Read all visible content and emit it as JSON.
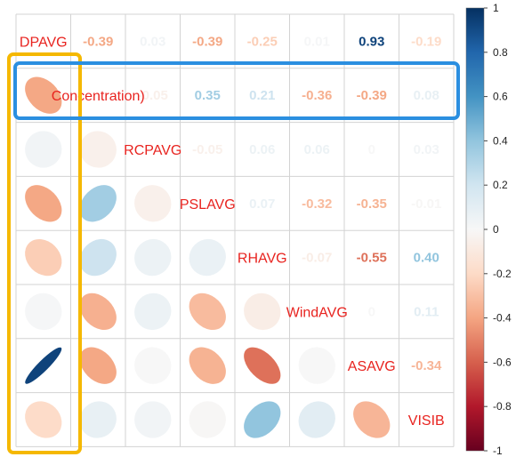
{
  "chart_data": {
    "type": "heatmap",
    "variables": [
      "DPAVG",
      "(Concentration)",
      "RCPAVG",
      "PSLAVG",
      "RHAVG",
      "WindAVG",
      "ASAVG",
      "VISIB"
    ],
    "variable_labels": [
      "DPAVG",
      "Concentration)",
      "RCPAVG",
      "PSLAVG",
      "RHAVG",
      "WindAVG",
      "ASAVG",
      "VISIB"
    ],
    "matrix": [
      [
        1.0,
        -0.39,
        0.03,
        -0.39,
        -0.25,
        0.01,
        0.93,
        -0.19
      ],
      [
        -0.39,
        1.0,
        -0.05,
        0.35,
        0.21,
        -0.36,
        -0.39,
        0.08
      ],
      [
        0.03,
        -0.05,
        1.0,
        -0.05,
        0.06,
        0.06,
        0.0,
        0.03
      ],
      [
        -0.39,
        0.35,
        -0.05,
        1.0,
        0.07,
        -0.32,
        -0.35,
        -0.01
      ],
      [
        -0.25,
        0.21,
        0.06,
        0.07,
        1.0,
        -0.07,
        -0.55,
        0.4
      ],
      [
        0.01,
        -0.36,
        0.06,
        -0.32,
        -0.07,
        1.0,
        0.0,
        0.11
      ],
      [
        0.93,
        -0.39,
        0.0,
        -0.35,
        -0.55,
        0.0,
        1.0,
        -0.34
      ],
      [
        -0.19,
        0.08,
        0.03,
        -0.01,
        0.4,
        0.11,
        -0.34,
        1.0
      ]
    ],
    "upper_triangle_display": "number",
    "lower_triangle_display": "ellipse",
    "color_scale": {
      "range": [
        -1,
        1
      ],
      "low_color": "#67001f",
      "mid_color": "#f7f7f7",
      "high_color": "#053061",
      "ticks": [
        "1",
        "0.8",
        "0.6",
        "0.4",
        "0.2",
        "0",
        "-0.2",
        "-0.4",
        "-0.6",
        "-0.8",
        "-1"
      ]
    },
    "legend_position": "right",
    "grid": true
  },
  "annotations": {
    "yellow_box": {
      "color": "#f5b800",
      "column": 0,
      "rows": [
        1,
        7
      ]
    },
    "blue_box": {
      "color": "#2b8fe0",
      "row": 1
    }
  },
  "label_color": "#e8231f"
}
